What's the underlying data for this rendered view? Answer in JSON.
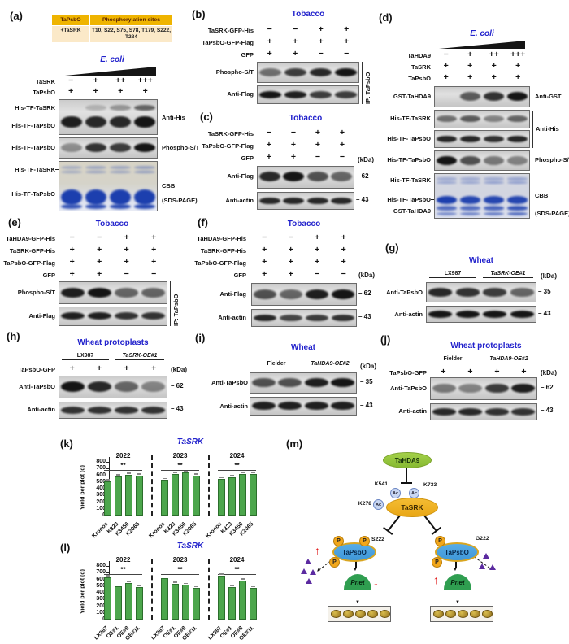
{
  "figure": {
    "kda_label": "(kDa)"
  },
  "panels": {
    "a": {
      "label": "(a)",
      "table": {
        "h1": "TaPsbO",
        "h2": "Phosphorylation sites",
        "c1": "+TaSRK",
        "c2": "T10, S22, S75, S78, T179, S222, T284"
      },
      "organism": "E. coli",
      "cond": [
        {
          "label": "TaSRK",
          "v": [
            "−",
            "+",
            "++",
            "+++"
          ]
        },
        {
          "label": "TaPsbO",
          "v": [
            "+",
            "+",
            "+",
            "+"
          ]
        }
      ],
      "blot1_l1": "His-TF-TaSRK",
      "blot1_l2": "His-TF-TaPsbO",
      "blot1_r": "Anti-His",
      "blot2_l": "His-TF-TaPsbO",
      "blot2_r": "Phospho-S/T",
      "cbb_l1": "His-TF-TaSRK",
      "cbb_l2": "His-TF-TaPsbO",
      "cbb_r1": "CBB",
      "cbb_r2": "(SDS-PAGE)"
    },
    "b": {
      "label": "(b)",
      "organism": "Tobacco",
      "cond": [
        {
          "label": "TaSRK-GFP-His",
          "v": [
            "−",
            "−",
            "+",
            "+"
          ]
        },
        {
          "label": "TaPsbO-GFP-Flag",
          "v": [
            "+",
            "+",
            "+",
            "+"
          ]
        },
        {
          "label": "GFP",
          "v": [
            "+",
            "+",
            "−",
            "−"
          ]
        }
      ],
      "strip1": "Phospho-S/T",
      "strip2": "Anti-Flag",
      "ip": "IP: TaPsbO"
    },
    "c": {
      "label": "(c)",
      "organism": "Tobacco",
      "cond": [
        {
          "label": "TaSRK-GFP-His",
          "v": [
            "−",
            "−",
            "+",
            "+"
          ]
        },
        {
          "label": "TaPsbO-GFP-Flag",
          "v": [
            "+",
            "+",
            "+",
            "+"
          ]
        },
        {
          "label": "GFP",
          "v": [
            "+",
            "+",
            "−",
            "−"
          ]
        }
      ],
      "strip1": "Anti-Flag",
      "m1": "62",
      "strip2": "Anti-actin",
      "m2": "43"
    },
    "d": {
      "label": "(d)",
      "organism": "E. coli",
      "cond": [
        {
          "label": "TaHDA9",
          "v": [
            "−",
            "+",
            "++",
            "+++"
          ]
        },
        {
          "label": "TaSRK",
          "v": [
            "+",
            "+",
            "+",
            "+"
          ]
        },
        {
          "label": "TaPsbO",
          "v": [
            "+",
            "+",
            "+",
            "+"
          ]
        }
      ],
      "gst_l": "GST-TaHDA9",
      "gst_r": "Anti-GST",
      "his1_l": "His-TF-TaSRK",
      "his2_l": "His-TF-TaPsbO",
      "his_r": "Anti-His",
      "ph_l": "His-TF-TaPsbO",
      "ph_r": "Phospho-S/T",
      "cbb_l1": "His-TF-TaSRK",
      "cbb_l2": "His-TF-TaPsbO",
      "cbb_l3": "GST-TaHDA9",
      "cbb_r1": "CBB",
      "cbb_r2": "(SDS-PAGE)"
    },
    "e": {
      "label": "(e)",
      "organism": "Tobacco",
      "cond": [
        {
          "label": "TaHDA9-GFP-His",
          "v": [
            "−",
            "−",
            "+",
            "+"
          ]
        },
        {
          "label": "TaSRK-GFP-His",
          "v": [
            "+",
            "+",
            "+",
            "+"
          ]
        },
        {
          "label": "TaPsbO-GFP-Flag",
          "v": [
            "+",
            "+",
            "+",
            "+"
          ]
        },
        {
          "label": "GFP",
          "v": [
            "+",
            "+",
            "−",
            "−"
          ]
        }
      ],
      "strip1": "Phospho-S/T",
      "strip2": "Anti-Flag",
      "ip": "IP: TaPsbO"
    },
    "f": {
      "label": "(f)",
      "organism": "Tobacco",
      "cond": [
        {
          "label": "TaHDA9-GFP-His",
          "v": [
            "−",
            "−",
            "+",
            "+"
          ]
        },
        {
          "label": "TaSRK-GFP-His",
          "v": [
            "+",
            "+",
            "+",
            "+"
          ]
        },
        {
          "label": "TaPsbO-GFP-Flag",
          "v": [
            "+",
            "+",
            "+",
            "+"
          ]
        },
        {
          "label": "GFP",
          "v": [
            "+",
            "+",
            "−",
            "−"
          ]
        }
      ],
      "strip1": "Anti-Flag",
      "m1": "62",
      "strip2": "Anti-actin",
      "m2": "43"
    },
    "g": {
      "label": "(g)",
      "organism": "Wheat",
      "groups": [
        "LX987",
        "TaSRK-OE#1"
      ],
      "strip1": "Anti-TaPsbO",
      "m1": "35",
      "strip2": "Anti-actin",
      "m2": "43"
    },
    "h": {
      "label": "(h)",
      "organism": "Wheat protoplasts",
      "groups": [
        "LX987",
        "TaSRK-OE#1"
      ],
      "cond": [
        {
          "label": "TaPsbO-GFP",
          "v": [
            "+",
            "+",
            "+",
            "+"
          ]
        }
      ],
      "strip1": "Anti-TaPsbO",
      "m1": "62",
      "strip2": "Anti-actin",
      "m2": "43"
    },
    "i": {
      "label": "(i)",
      "organism": "Wheat",
      "groups": [
        "Fielder",
        "TaHDA9-OE#2"
      ],
      "strip1": "Anti-TaPsbO",
      "m1": "35",
      "strip2": "Anti-actin",
      "m2": "43"
    },
    "j": {
      "label": "(j)",
      "organism": "Wheat protoplasts",
      "groups": [
        "Fielder",
        "TaHDA9-OE#2"
      ],
      "cond": [
        {
          "label": "TaPsbO-GFP",
          "v": [
            "+",
            "+",
            "+",
            "+"
          ]
        }
      ],
      "strip1": "Anti-TaPsbO",
      "m1": "62",
      "strip2": "Anti-actin",
      "m2": "43"
    },
    "k": {
      "label": "(k)"
    },
    "l": {
      "label": "(l)"
    },
    "m": {
      "label": "(m)",
      "tahda9": "TaHDA9",
      "tasrk": "TaSRK",
      "tapsbo": "TaPsbO",
      "pnet": "Pnet",
      "ac": "Ac",
      "p": "P",
      "k541": "K541",
      "k733": "K733",
      "k278": "K278",
      "s222": "S222",
      "g222": "G222",
      "up": "↑",
      "down": "↓"
    }
  },
  "chart_data": [
    {
      "type": "bar",
      "panel": "k",
      "title": "TaSRK",
      "ylabel": "Yield per plot (g)",
      "ylim": [
        0,
        800
      ],
      "yticks": [
        0,
        100,
        200,
        300,
        400,
        500,
        600,
        700,
        800
      ],
      "bar_color": "#4CA64C",
      "grid": false,
      "groups": [
        {
          "year": "2022",
          "sig": "**",
          "categories": [
            "Kronos",
            "K323",
            "K3456",
            "K2065"
          ],
          "values": [
            510,
            585,
            610,
            595
          ]
        },
        {
          "year": "2023",
          "sig": "**",
          "categories": [
            "Kronos",
            "K323",
            "K3456",
            "K2065"
          ],
          "values": [
            530,
            615,
            640,
            600
          ]
        },
        {
          "year": "2024",
          "sig": "**",
          "categories": [
            "Kronos",
            "K323",
            "K3456",
            "K2065"
          ],
          "values": [
            545,
            575,
            620,
            615
          ]
        }
      ]
    },
    {
      "type": "bar",
      "panel": "l",
      "title": "TaSRK",
      "ylabel": "Yield per plot (g)",
      "ylim": [
        0,
        800
      ],
      "yticks": [
        0,
        100,
        200,
        300,
        400,
        500,
        600,
        700,
        800
      ],
      "bar_color": "#4CA64C",
      "grid": false,
      "groups": [
        {
          "year": "2022",
          "sig": "**",
          "categories": [
            "LX987",
            "OE#1",
            "OE#8",
            "OE#11"
          ],
          "values": [
            635,
            495,
            540,
            485
          ]
        },
        {
          "year": "2023",
          "sig": "**",
          "categories": [
            "LX987",
            "OE#1",
            "OE#8",
            "OE#11"
          ],
          "values": [
            615,
            535,
            520,
            470
          ]
        },
        {
          "year": "2024",
          "sig": "**",
          "categories": [
            "LX987",
            "OE#1",
            "OE#8",
            "OE#11"
          ],
          "values": [
            660,
            480,
            585,
            470
          ]
        }
      ]
    }
  ]
}
